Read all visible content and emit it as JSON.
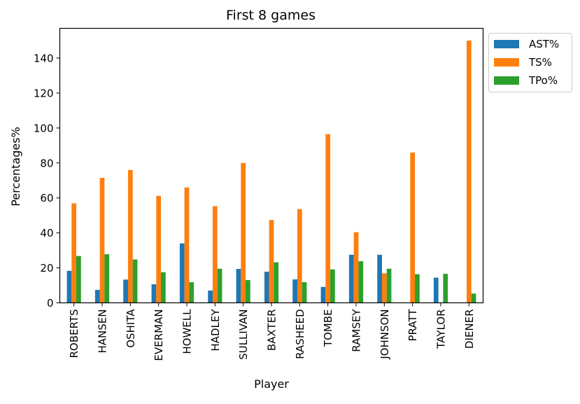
{
  "chart_data": {
    "type": "bar",
    "title": "First 8 games",
    "xlabel": "Player",
    "ylabel": "Percentages%",
    "ylim": [
      0,
      157
    ],
    "yticks": [
      0,
      20,
      40,
      60,
      80,
      100,
      120,
      140
    ],
    "grid": false,
    "legend_position": "outside top-right",
    "categories": [
      "ROBERTS",
      "HANSEN",
      "OSHITA",
      "EVERMAN",
      "HOWELL",
      "HADLEY",
      "SULLIVAN",
      "BAXTER",
      "RASHEED",
      "TOMBE",
      "RAMSEY",
      "JOHNSON",
      "PRATT",
      "TAYLOR",
      "DIENER"
    ],
    "series": [
      {
        "name": "AST%",
        "color": "#1f77b4",
        "values": [
          18.3,
          7.4,
          13.3,
          10.6,
          34.0,
          7.0,
          19.4,
          17.8,
          13.4,
          9.1,
          27.5,
          27.5,
          0,
          14.4,
          0
        ]
      },
      {
        "name": "TS%",
        "color": "#ff7f0e",
        "values": [
          56.9,
          71.5,
          76.0,
          61.2,
          66.0,
          55.3,
          80.0,
          47.4,
          53.6,
          96.5,
          40.4,
          16.9,
          86.0,
          0,
          150.0
        ]
      },
      {
        "name": "TPo%",
        "color": "#2ca02c",
        "values": [
          26.8,
          27.8,
          24.8,
          17.5,
          11.8,
          19.5,
          13.0,
          23.2,
          11.8,
          19.1,
          23.8,
          19.5,
          16.4,
          16.6,
          5.3
        ]
      }
    ]
  }
}
